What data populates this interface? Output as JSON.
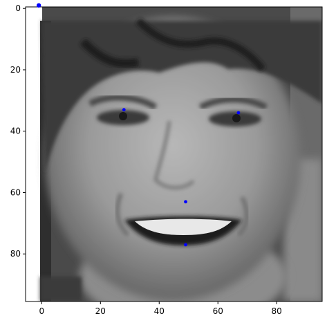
{
  "chart_data": {
    "type": "scatter",
    "title": "",
    "xlabel": "",
    "ylabel": "",
    "background_image": "grayscale-face-photo",
    "xlim": [
      -5.5,
      95.5
    ],
    "ylim": [
      95.5,
      -0.5
    ],
    "y_inverted": true,
    "grid": false,
    "x_ticks": [
      0,
      20,
      40,
      60,
      80
    ],
    "y_ticks": [
      0,
      20,
      40,
      60,
      80
    ],
    "series": [
      {
        "color": "#0000ff",
        "marker": "circle",
        "points": [
          {
            "x": -1,
            "y": -1
          },
          {
            "x": 28,
            "y": 33
          },
          {
            "x": 67,
            "y": 34
          },
          {
            "x": 49,
            "y": 63
          },
          {
            "x": 49,
            "y": 77
          }
        ]
      }
    ]
  }
}
